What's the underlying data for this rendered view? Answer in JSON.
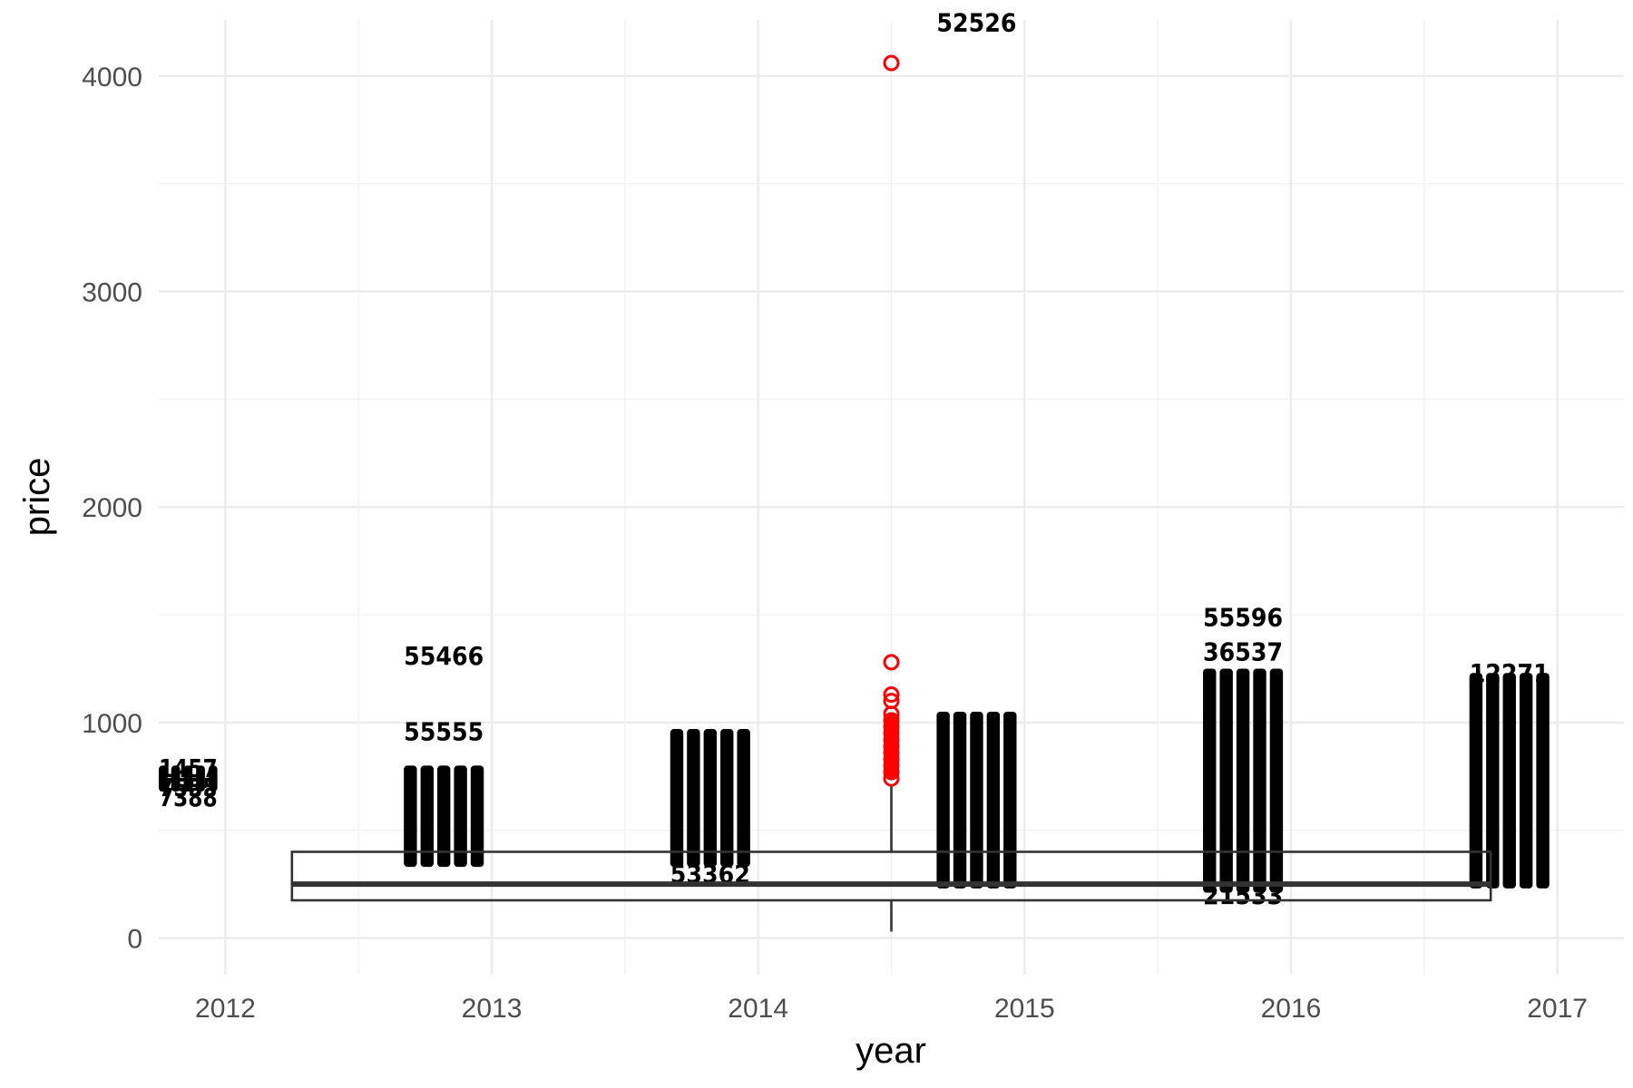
{
  "chart_data": {
    "type": "box",
    "xlabel": "year",
    "ylabel": "price",
    "x_ticks": [
      2012,
      2013,
      2014,
      2015,
      2016,
      2017
    ],
    "y_ticks": [
      0,
      1000,
      2000,
      3000,
      4000
    ],
    "xlim": [
      2011.75,
      2017.25
    ],
    "ylim": [
      -170,
      4260
    ],
    "grid": true,
    "boxplot": {
      "x": 2014.5,
      "x_span": [
        2012.25,
        2016.75
      ],
      "q1": 175,
      "median": 250,
      "q3": 400,
      "whisker_low": 30,
      "whisker_high": 710,
      "outliers": [
        4060,
        1280,
        1130,
        1100,
        1040,
        1010,
        980,
        950,
        920,
        890,
        860,
        830,
        800,
        770,
        740
      ]
    },
    "label_columns": [
      {
        "year": 2012,
        "x_range": [
          2011.75,
          2011.97
        ],
        "y_range": [
          680,
          800
        ]
      },
      {
        "year": 2013,
        "x_range": [
          2012.67,
          2012.97
        ],
        "y_range": [
          330,
          800
        ]
      },
      {
        "year": 2014,
        "x_range": [
          2013.67,
          2013.97
        ],
        "y_range": [
          330,
          970
        ]
      },
      {
        "year": 2015,
        "x_range": [
          2014.67,
          2014.97
        ],
        "y_range": [
          230,
          1050
        ]
      },
      {
        "year": 2016,
        "x_range": [
          2015.67,
          2015.97
        ],
        "y_range": [
          210,
          1250
        ]
      },
      {
        "year": 2017,
        "x_range": [
          2016.67,
          2016.97
        ],
        "y_range": [
          230,
          1230
        ]
      }
    ],
    "label_texts": [
      {
        "year": 2012,
        "y": 790,
        "text": "1457"
      },
      {
        "year": 2012,
        "y": 700,
        "text": "7555"
      },
      {
        "year": 2012,
        "y": 655,
        "text": "7388"
      },
      {
        "year": 2013,
        "y": 1310,
        "text": "55466"
      },
      {
        "year": 2013,
        "y": 960,
        "text": "55555"
      },
      {
        "year": 2014,
        "y": 300,
        "text": "53362"
      },
      {
        "year": 2015,
        "y": 4250,
        "text": "52526"
      },
      {
        "year": 2016,
        "y": 1490,
        "text": "55596"
      },
      {
        "year": 2016,
        "y": 1330,
        "text": "36537"
      },
      {
        "year": 2016,
        "y": 200,
        "text": "21533"
      },
      {
        "year": 2017,
        "y": 1230,
        "text": "12271"
      }
    ]
  }
}
